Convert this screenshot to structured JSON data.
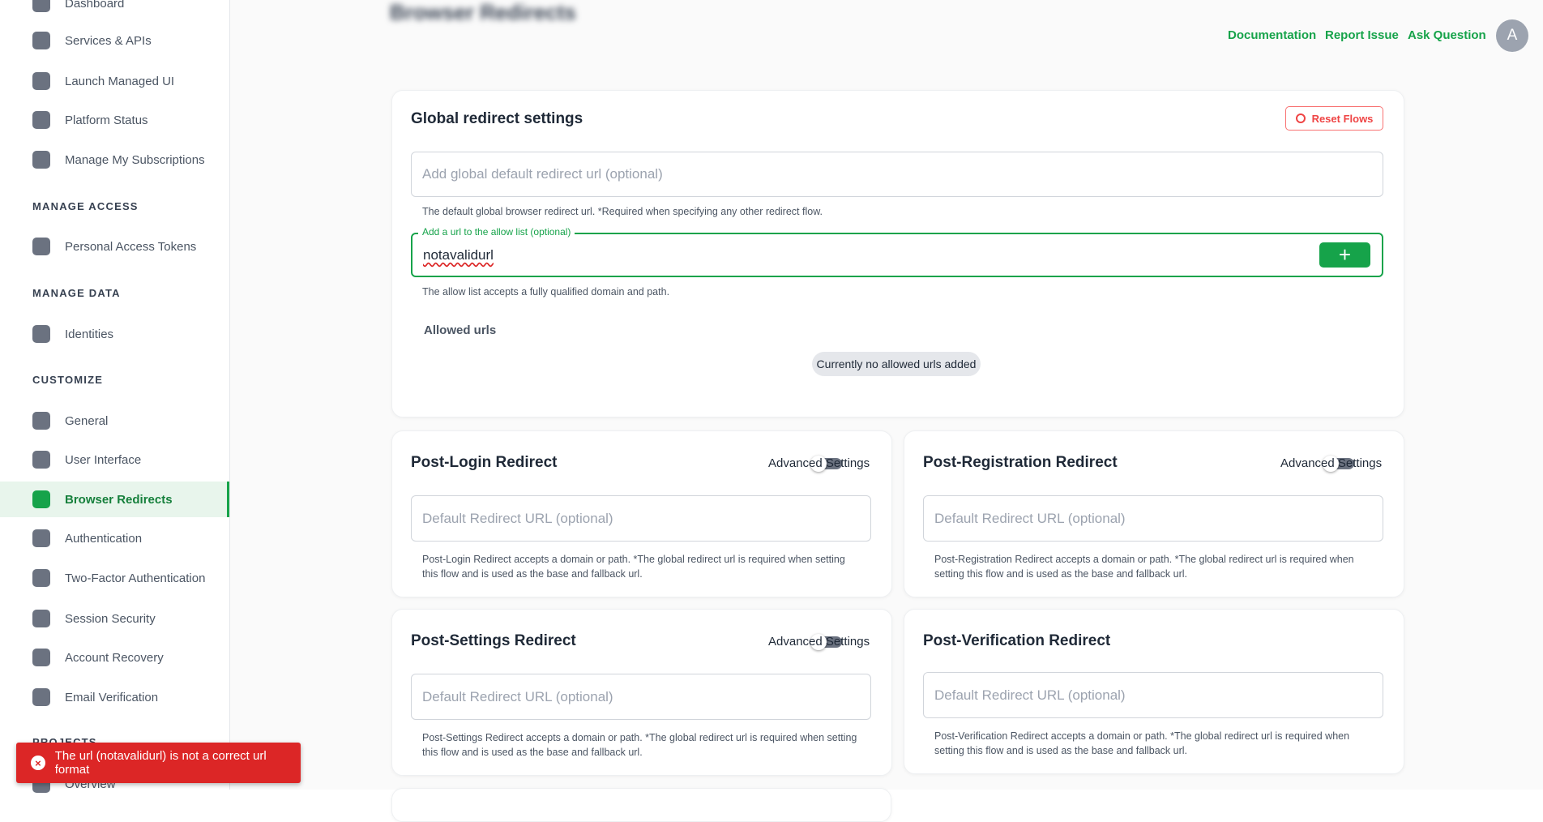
{
  "sidebar": {
    "top": [
      "Dashboard",
      "Services & APIs",
      "Launch Managed UI",
      "Platform Status",
      "Manage My Subscriptions"
    ],
    "sections": [
      {
        "heading": "MANAGE ACCESS",
        "items": [
          "Personal Access Tokens"
        ]
      },
      {
        "heading": "MANAGE DATA",
        "items": [
          "Identities"
        ]
      },
      {
        "heading": "CUSTOMIZE",
        "items": [
          "General",
          "User Interface",
          "Browser Redirects",
          "Authentication",
          "Two-Factor Authentication",
          "Session Security",
          "Account Recovery",
          "Email Verification"
        ]
      },
      {
        "heading": "PROJECTS",
        "items": [
          "Overview"
        ]
      }
    ]
  },
  "header": {
    "title": "Browser Redirects",
    "links": [
      "Documentation",
      "Report Issue",
      "Ask Question"
    ],
    "avatar": "A"
  },
  "global": {
    "title": "Global redirect settings",
    "reset": "Reset Flows",
    "default_placeholder": "Add global default redirect url (optional)",
    "default_help": "The default global browser redirect url. *Required when specifying any other redirect flow.",
    "allow_label": "Add a url to the allow list (optional)",
    "allow_value": "notavalidurl",
    "allow_help": "The allow list accepts a fully qualified domain and path.",
    "allowed_title": "Allowed urls",
    "allowed_empty": "Currently no allowed urls added"
  },
  "redirect_cards": [
    {
      "title": "Post-Login Redirect",
      "toggle_label": "Advanced Settings",
      "placeholder": "Default Redirect URL (optional)",
      "help": "Post-Login Redirect accepts a domain or path. *The global redirect url is required when setting this flow and is used as the base and fallback url."
    },
    {
      "title": "Post-Registration Redirect",
      "toggle_label": "Advanced Settings",
      "placeholder": "Default Redirect URL (optional)",
      "help": "Post-Registration Redirect accepts a domain or path. *The global redirect url is required when setting this flow and is used as the base and fallback url."
    },
    {
      "title": "Post-Settings Redirect",
      "toggle_label": "Advanced Settings",
      "placeholder": "Default Redirect URL (optional)",
      "help": "Post-Settings Redirect accepts a domain or path. *The global redirect url is required when setting this flow and is used as the base and fallback url."
    },
    {
      "title": "Post-Verification Redirect",
      "placeholder": "Default Redirect URL (optional)",
      "help": "Post-Verification Redirect accepts a domain or path. *The global redirect url is required when setting this flow and is used as the base and fallback url."
    }
  ],
  "toast": {
    "message": "The url (notavalidurl) is not a correct url format"
  }
}
